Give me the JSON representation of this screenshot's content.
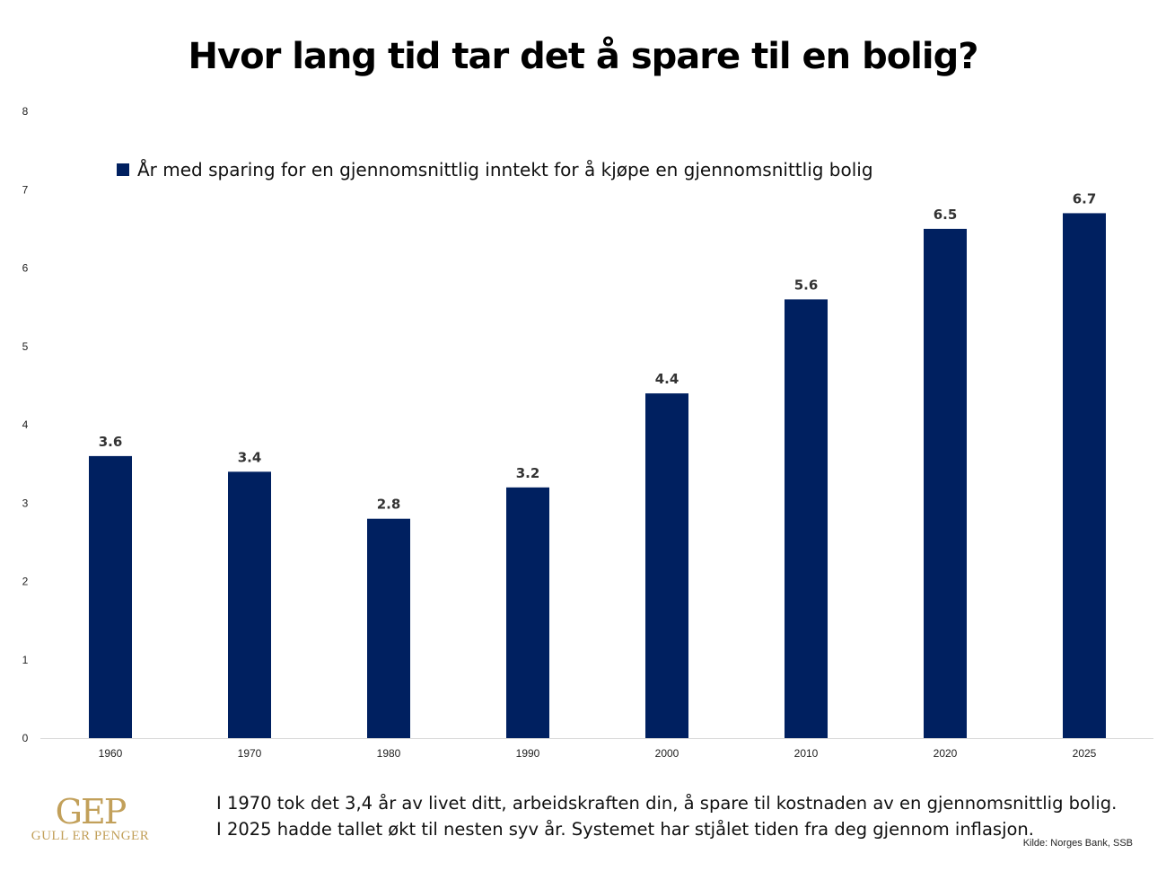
{
  "chart_data": {
    "type": "bar",
    "title": "Hvor lang tid tar det å spare til en bolig?",
    "categories": [
      "1960",
      "1970",
      "1980",
      "1990",
      "2000",
      "2010",
      "2020",
      "2025"
    ],
    "series": [
      {
        "name": "År med sparing for en gjennomsnittlig inntekt for å kjøpe en gjennomsnittlig bolig",
        "values": [
          3.6,
          3.4,
          2.8,
          3.2,
          4.4,
          5.6,
          6.5,
          6.7
        ],
        "color": "#002060"
      }
    ],
    "data_labels": [
      "3.6",
      "3.4",
      "2.8",
      "3.2",
      "4.4",
      "5.6",
      "6.5",
      "6.7"
    ],
    "yticks": [
      "0",
      "1",
      "2",
      "3",
      "4",
      "5",
      "6",
      "7",
      "8"
    ],
    "ylim": [
      0,
      8
    ],
    "xlabel": "",
    "ylabel": "",
    "grid": false,
    "legend_position": "top-left"
  },
  "caption": {
    "line1": "I 1970 tok det 3,4 år av livet ditt, arbeidskraften din, å spare til kostnaden av en gjennomsnittlig bolig.",
    "line2": "I 2025 hadde tallet økt til nesten syv år. Systemet har stjålet tiden fra deg gjennom inflasjon."
  },
  "source": "Kilde: Norges Bank, SSB",
  "logo": {
    "mark": "GEP",
    "text": "GULL ER PENGER"
  }
}
